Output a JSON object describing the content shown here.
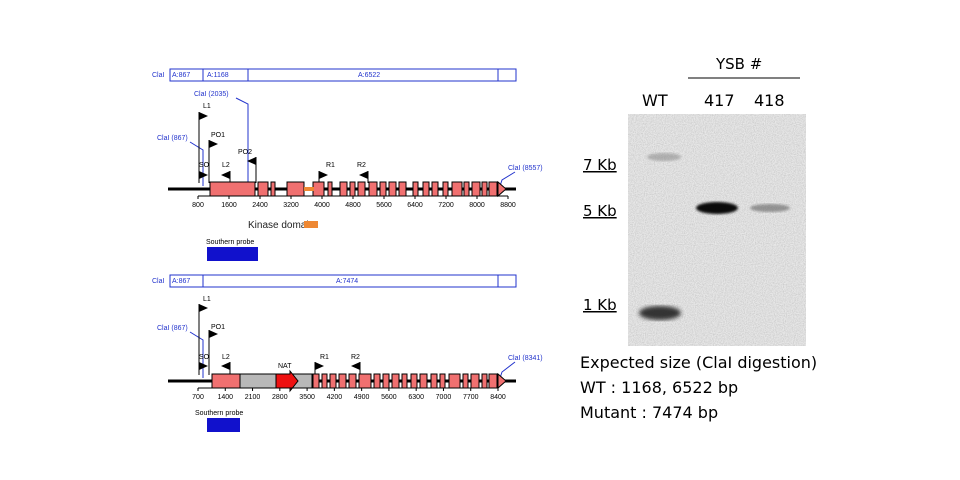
{
  "wt_map": {
    "cla_left_label": "ClaI",
    "fragments": [
      "A:867",
      "A:1168",
      "A:6522"
    ],
    "cla_sites": [
      "ClaI (867)",
      "ClaI (2035)",
      "ClaI (8557)"
    ],
    "primers": [
      "L1",
      "PO1",
      "SO",
      "L2",
      "PO2",
      "R1",
      "R2"
    ],
    "axis_ticks": [
      "800",
      "1600",
      "2400",
      "3200",
      "4000",
      "4800",
      "5600",
      "6400",
      "7200",
      "8000",
      "8800"
    ],
    "kinase_label": "Kinase domain",
    "probe_label": "Southern probe"
  },
  "mut_map": {
    "cla_left_label": "ClaI",
    "fragments": [
      "A:867",
      "A:7474"
    ],
    "cla_sites": [
      "ClaI (867)",
      "ClaI (8341)"
    ],
    "primers": [
      "L1",
      "PO1",
      "SO",
      "L2",
      "NAT",
      "R1",
      "R2"
    ],
    "axis_ticks": [
      "700",
      "1400",
      "2100",
      "2800",
      "3500",
      "4200",
      "4900",
      "5600",
      "6300",
      "7000",
      "7700",
      "8400"
    ],
    "probe_label": "Southern probe"
  },
  "gel": {
    "group_label": "YSB #",
    "lanes": [
      "WT",
      "417",
      "418"
    ],
    "markers": [
      "7 Kb",
      "5 Kb",
      "1 Kb"
    ],
    "caption": [
      "Expected size (ClaI digestion)",
      "WT : 1168, 6522 bp",
      "Mutant : 7474 bp"
    ]
  },
  "colors": {
    "exon": "#f07070",
    "nat": "#ee1111",
    "kinase": "#ee8833",
    "probe": "#1111cc",
    "annot": "#2233cc",
    "gray_block": "#b8b8b8"
  }
}
